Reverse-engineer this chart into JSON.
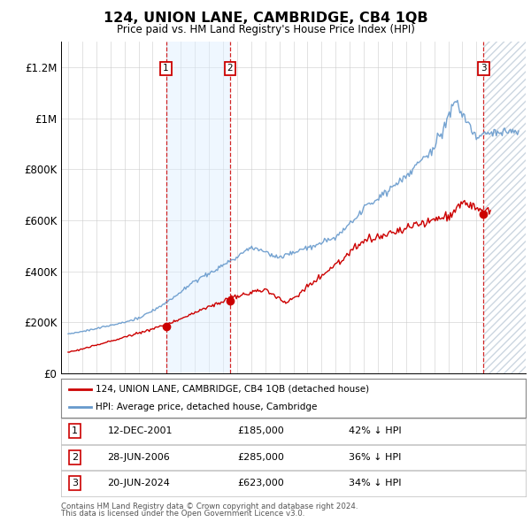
{
  "title": "124, UNION LANE, CAMBRIDGE, CB4 1QB",
  "subtitle": "Price paid vs. HM Land Registry's House Price Index (HPI)",
  "ylabel_ticks": [
    "£0",
    "£200K",
    "£400K",
    "£600K",
    "£800K",
    "£1M",
    "£1.2M"
  ],
  "ytick_values": [
    0,
    200000,
    400000,
    600000,
    800000,
    1000000,
    1200000
  ],
  "ylim": [
    0,
    1300000
  ],
  "xlim_start": 1994.5,
  "xlim_end": 2027.5,
  "transactions": [
    {
      "num": 1,
      "date": "12-DEC-2001",
      "price": 185000,
      "pct": "42% ↓ HPI",
      "x": 2001.95
    },
    {
      "num": 2,
      "date": "28-JUN-2006",
      "price": 285000,
      "pct": "36% ↓ HPI",
      "x": 2006.5
    },
    {
      "num": 3,
      "date": "20-JUN-2024",
      "price": 623000,
      "pct": "34% ↓ HPI",
      "x": 2024.5
    }
  ],
  "legend_line1": "124, UNION LANE, CAMBRIDGE, CB4 1QB (detached house)",
  "legend_line2": "HPI: Average price, detached house, Cambridge",
  "footer1": "Contains HM Land Registry data © Crown copyright and database right 2024.",
  "footer2": "This data is licensed under the Open Government Licence v3.0.",
  "line_red": "#cc0000",
  "line_blue": "#6699cc",
  "shade_blue_light": "#ddeeff",
  "hatch_edge": "#aabbcc",
  "background": "#ffffff",
  "grid_color": "#cccccc"
}
